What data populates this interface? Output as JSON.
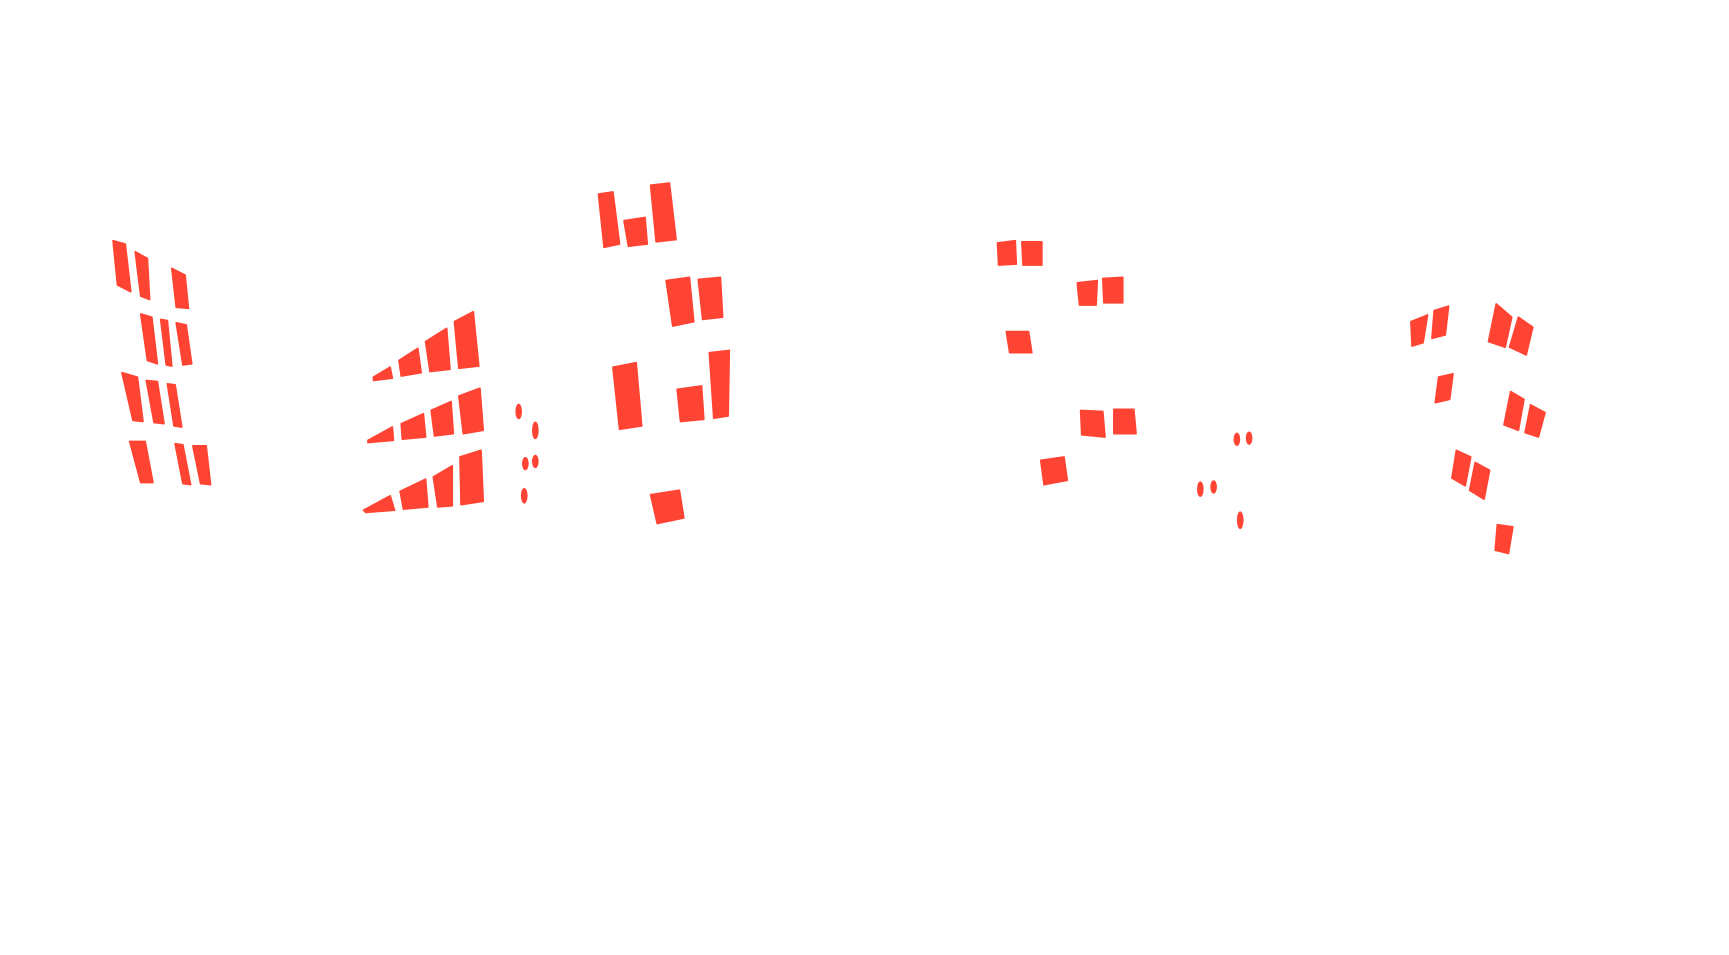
{
  "background_color": "#ffffff",
  "mask_color": "#ff4433",
  "content": "window-segmentation-mask",
  "groups": [
    {
      "name": "building-left"
    },
    {
      "name": "building-left-center"
    },
    {
      "name": "building-center"
    },
    {
      "name": "building-right-center"
    },
    {
      "name": "building-right"
    }
  ]
}
